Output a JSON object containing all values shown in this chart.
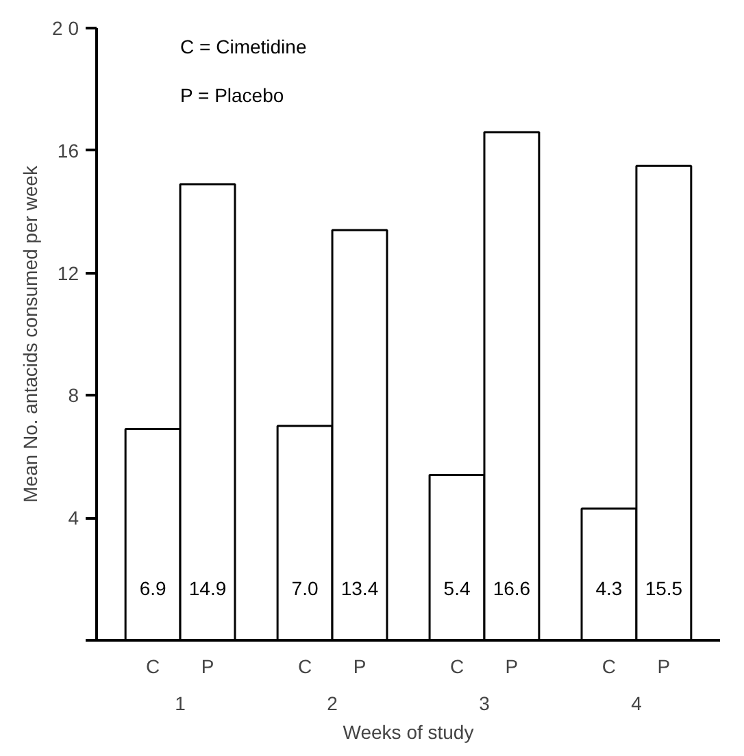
{
  "chart_data": {
    "type": "bar",
    "xlabel": "Weeks of study",
    "ylabel": "Mean No. antacids consumed per week",
    "categories": [
      "1",
      "2",
      "3",
      "4"
    ],
    "series": [
      {
        "name": "C",
        "color": "#ffffff",
        "values": [
          6.9,
          7.0,
          5.4,
          4.3
        ],
        "value_labels": [
          "6.9",
          "7.0",
          "5.4",
          "4.3"
        ]
      },
      {
        "name": "P",
        "color": "#ffffff",
        "values": [
          14.9,
          13.4,
          16.6,
          15.5
        ],
        "value_labels": [
          "14.9",
          "13.4",
          "16.6",
          "15.5"
        ]
      }
    ],
    "ylim": [
      0,
      20
    ],
    "yticks": [
      {
        "value": 0,
        "label": null
      },
      4,
      8,
      12,
      16,
      {
        "value": 20,
        "label": "2 0"
      }
    ],
    "annotations": [
      "C = Cimetidine",
      "P = Placebo"
    ],
    "grid": false
  }
}
